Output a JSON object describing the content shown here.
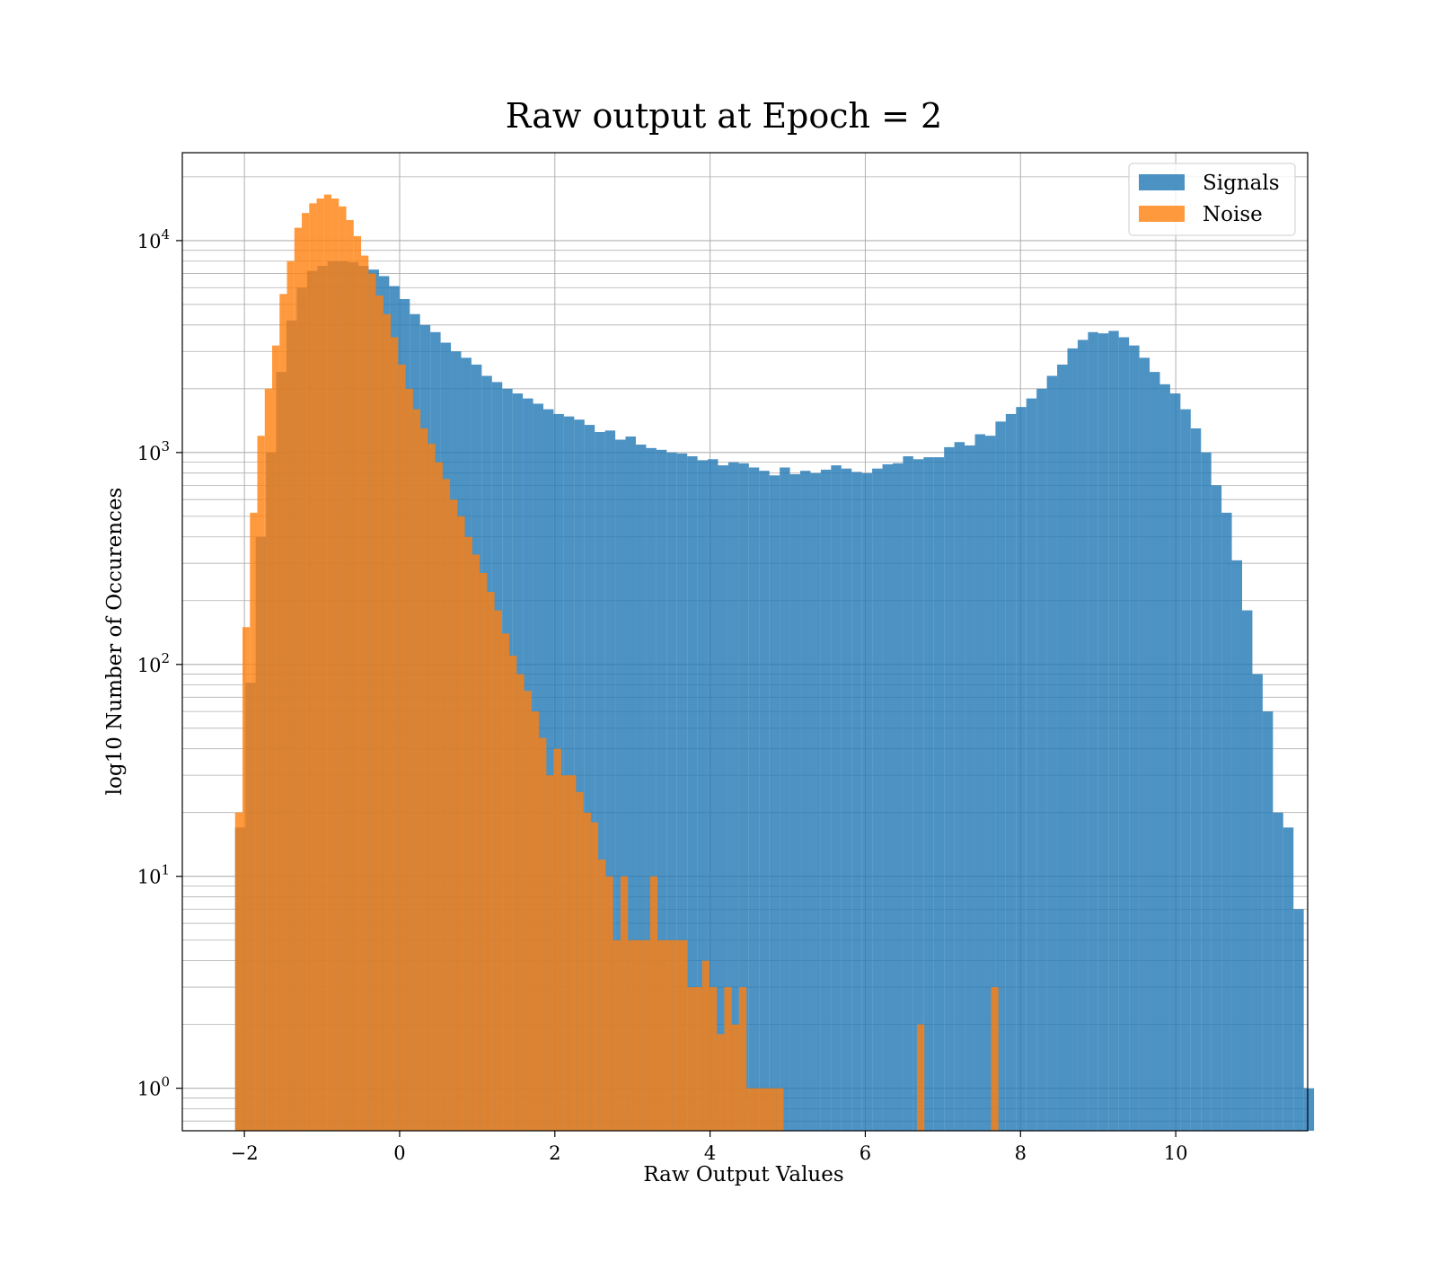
{
  "chart_data": {
    "type": "bar",
    "title": "Raw output at Epoch = 2",
    "xlabel": "Raw Output Values",
    "ylabel": "log10 Number of Occurences",
    "xlim": [
      -2.8,
      11.7
    ],
    "ylim": [
      0.63,
      26000
    ],
    "yscale": "log",
    "xticks": [
      {
        "value": -2,
        "label": "−2"
      },
      {
        "value": 0,
        "label": "0"
      },
      {
        "value": 2,
        "label": "2"
      },
      {
        "value": 4,
        "label": "4"
      },
      {
        "value": 6,
        "label": "6"
      },
      {
        "value": 8,
        "label": "8"
      },
      {
        "value": 10,
        "label": "10"
      }
    ],
    "yticks": [
      {
        "value": 1,
        "base": "10",
        "exp": "0"
      },
      {
        "value": 10,
        "base": "10",
        "exp": "1"
      },
      {
        "value": 100,
        "base": "10",
        "exp": "2"
      },
      {
        "value": 1000,
        "base": "10",
        "exp": "3"
      },
      {
        "value": 10000,
        "base": "10",
        "exp": "4"
      }
    ],
    "grid": true,
    "legend_position": "top-right",
    "series": [
      {
        "name": "Signals",
        "color": "#1f77b4",
        "opacity": 0.8,
        "bin_start": -2.12,
        "bin_width": 0.1324,
        "values": [
          17,
          82,
          400,
          1000,
          2400,
          4200,
          6000,
          7200,
          7600,
          8000,
          8000,
          7900,
          7600,
          7300,
          6800,
          6100,
          5300,
          4500,
          4000,
          3700,
          3300,
          3000,
          2800,
          2600,
          2300,
          2150,
          2000,
          1900,
          1800,
          1700,
          1600,
          1520,
          1480,
          1430,
          1350,
          1250,
          1270,
          1150,
          1190,
          1090,
          1050,
          1030,
          1000,
          990,
          960,
          920,
          930,
          870,
          900,
          890,
          850,
          820,
          780,
          850,
          790,
          820,
          800,
          830,
          870,
          840,
          810,
          800,
          840,
          880,
          890,
          960,
          930,
          950,
          950,
          1060,
          1120,
          1080,
          1220,
          1200,
          1400,
          1520,
          1640,
          1800,
          2000,
          2300,
          2600,
          3100,
          3400,
          3700,
          3650,
          3750,
          3500,
          3200,
          2800,
          2400,
          2100,
          1900,
          1600,
          1300,
          1000,
          700,
          520,
          310,
          180,
          90,
          60,
          20,
          17,
          7,
          1
        ]
      },
      {
        "name": "Noise",
        "color": "#ff7f0e",
        "opacity": 0.8,
        "bin_start": -2.12,
        "bin_width": 0.0955,
        "values": [
          20,
          150,
          520,
          1200,
          2000,
          3200,
          5600,
          8000,
          11500,
          13500,
          15000,
          15800,
          16500,
          15800,
          14500,
          12500,
          10500,
          8500,
          7000,
          5500,
          4500,
          3500,
          2600,
          2000,
          1600,
          1300,
          1100,
          900,
          750,
          600,
          500,
          400,
          330,
          270,
          220,
          180,
          140,
          110,
          90,
          75,
          60,
          45,
          30,
          40,
          30,
          30,
          25,
          20,
          18,
          12,
          10,
          5,
          10,
          5,
          5,
          5,
          10,
          5,
          5,
          5,
          5,
          3,
          3,
          4,
          3,
          1.8,
          3,
          2,
          3,
          1,
          1,
          1,
          1,
          1,
          0,
          0,
          0,
          0,
          0,
          0,
          0,
          0,
          0,
          0,
          0,
          0,
          0,
          0,
          0,
          0,
          0,
          0,
          2,
          0,
          0,
          0,
          0,
          0,
          0,
          0,
          0,
          0,
          3
        ]
      }
    ]
  }
}
